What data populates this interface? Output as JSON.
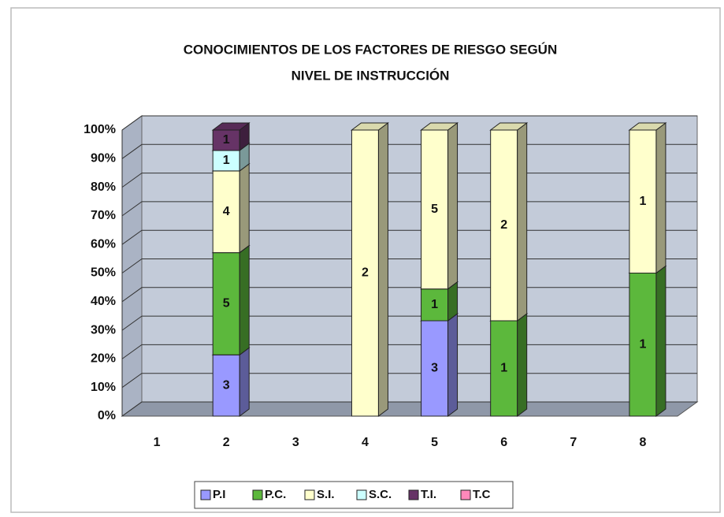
{
  "chart_data": {
    "type": "bar",
    "stacked": "percent",
    "title": "CONOCIMIENTOS DE LOS FACTORES DE RIESGO SEGÚN",
    "subtitle": "NIVEL DE INSTRUCCIÓN",
    "categories": [
      "1",
      "2",
      "3",
      "4",
      "5",
      "6",
      "7",
      "8"
    ],
    "series": [
      {
        "name": "P.I",
        "color": "#9999ff",
        "values": [
          0,
          3,
          0,
          0,
          3,
          0,
          0,
          0
        ]
      },
      {
        "name": "P.C.",
        "color": "#5cb83c",
        "values": [
          0,
          5,
          0,
          0,
          1,
          1,
          0,
          1
        ]
      },
      {
        "name": "S.I.",
        "color": "#ffffcc",
        "values": [
          0,
          4,
          0,
          2,
          5,
          2,
          0,
          1
        ]
      },
      {
        "name": "S.C.",
        "color": "#ccffff",
        "values": [
          0,
          1,
          0,
          0,
          0,
          0,
          0,
          0
        ]
      },
      {
        "name": "T.I.",
        "color": "#663366",
        "values": [
          0,
          1,
          0,
          0,
          0,
          0,
          0,
          0
        ]
      },
      {
        "name": "T.C",
        "color": "#ff88bb",
        "values": [
          0,
          0,
          0,
          0,
          0,
          0,
          0,
          0
        ]
      }
    ],
    "ylim": [
      0,
      100
    ],
    "yticks": [
      {
        "value": 0,
        "label": "0%"
      },
      {
        "value": 10,
        "label": "10%"
      },
      {
        "value": 20,
        "label": "20%"
      },
      {
        "value": 30,
        "label": "30%"
      },
      {
        "value": 40,
        "label": "40%"
      },
      {
        "value": 50,
        "label": "50%"
      },
      {
        "value": 60,
        "label": "60%"
      },
      {
        "value": 70,
        "label": "70%"
      },
      {
        "value": 80,
        "label": "80%"
      },
      {
        "value": 90,
        "label": "90%"
      },
      {
        "value": 100,
        "label": "100%"
      }
    ],
    "grid": true,
    "legend": "bottom"
  }
}
